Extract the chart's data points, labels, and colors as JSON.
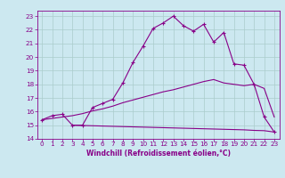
{
  "xlabel": "Windchill (Refroidissement éolien,°C)",
  "xlim": [
    -0.5,
    23.5
  ],
  "ylim": [
    14,
    23.4
  ],
  "yticks": [
    14,
    15,
    16,
    17,
    18,
    19,
    20,
    21,
    22,
    23
  ],
  "xticks": [
    0,
    1,
    2,
    3,
    4,
    5,
    6,
    7,
    8,
    9,
    10,
    11,
    12,
    13,
    14,
    15,
    16,
    17,
    18,
    19,
    20,
    21,
    22,
    23
  ],
  "bg_color": "#cce8f0",
  "line_color": "#880088",
  "grid_color": "#aacccc",
  "line1_x": [
    0,
    1,
    2,
    3,
    4,
    5,
    6,
    7,
    8,
    9,
    10,
    11,
    12,
    13,
    14,
    15,
    16,
    17,
    18,
    19,
    20,
    21,
    22,
    23
  ],
  "line1_y": [
    15.4,
    15.7,
    15.8,
    15.0,
    15.0,
    16.3,
    16.6,
    16.9,
    18.1,
    19.6,
    20.8,
    22.1,
    22.5,
    23.0,
    22.3,
    21.9,
    22.4,
    21.1,
    21.8,
    19.5,
    19.4,
    18.0,
    15.6,
    14.5
  ],
  "line2_x": [
    0,
    1,
    2,
    3,
    4,
    5,
    6,
    7,
    8,
    9,
    10,
    11,
    12,
    13,
    14,
    15,
    16,
    17,
    18,
    19,
    20,
    21,
    22,
    23
  ],
  "line2_y": [
    15.4,
    15.5,
    15.6,
    15.7,
    15.85,
    16.05,
    16.2,
    16.4,
    16.65,
    16.85,
    17.05,
    17.25,
    17.45,
    17.6,
    17.8,
    18.0,
    18.2,
    18.35,
    18.1,
    18.0,
    17.9,
    18.0,
    17.7,
    15.6
  ],
  "line3_x": [
    3,
    4,
    5,
    6,
    7,
    8,
    9,
    10,
    11,
    12,
    13,
    14,
    15,
    16,
    17,
    18,
    19,
    20,
    21,
    22,
    23
  ],
  "line3_y": [
    15.0,
    14.98,
    14.96,
    14.94,
    14.92,
    14.9,
    14.88,
    14.86,
    14.84,
    14.82,
    14.8,
    14.78,
    14.76,
    14.74,
    14.72,
    14.7,
    14.68,
    14.66,
    14.62,
    14.6,
    14.5
  ]
}
